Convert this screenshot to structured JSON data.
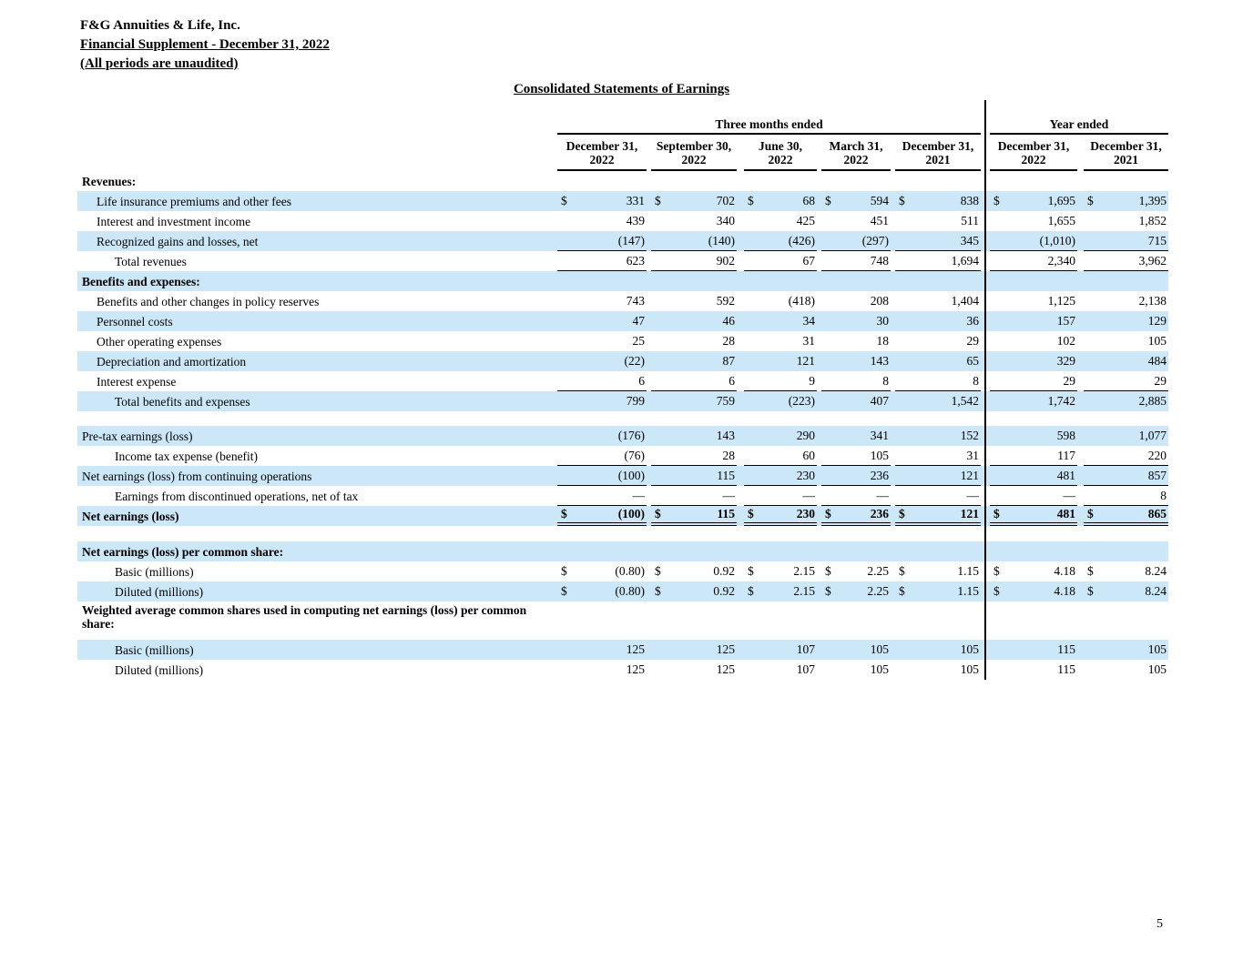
{
  "colors": {
    "row_shade": "#cce8f8",
    "rule": "#000000",
    "text": "#000000"
  },
  "header": {
    "company": "F&G Annuities & Life, Inc.",
    "subtitle": "Financial Supplement - December 31, 2022",
    "note": "(All periods are unaudited)"
  },
  "title": "Consolidated Statements of Earnings",
  "page_number": "5",
  "table": {
    "group_headers": [
      {
        "label": "Three months ended",
        "span": 5
      },
      {
        "label": "Year ended",
        "span": 2
      }
    ],
    "columns": [
      {
        "line1": "December 31,",
        "line2": "2022"
      },
      {
        "line1": "September 30,",
        "line2": "2022"
      },
      {
        "line1": "June 30,",
        "line2": "2022"
      },
      {
        "line1": "March 31,",
        "line2": "2022"
      },
      {
        "line1": "December 31,",
        "line2": "2021"
      },
      {
        "line1": "December 31,",
        "line2": "2022"
      },
      {
        "line1": "December 31,",
        "line2": "2021"
      }
    ],
    "rows": [
      {
        "label": "Revenues:",
        "bold": true,
        "indent": 0,
        "shade": false,
        "values": null
      },
      {
        "label": "Life insurance premiums and other fees",
        "indent": 1,
        "shade": true,
        "dollar": true,
        "values": [
          "331",
          "702",
          "68",
          "594",
          "838",
          "1,695",
          "1,395"
        ]
      },
      {
        "label": "Interest and investment income",
        "indent": 1,
        "shade": false,
        "values": [
          "439",
          "340",
          "425",
          "451",
          "511",
          "1,655",
          "1,852"
        ]
      },
      {
        "label": "Recognized gains and losses, net",
        "indent": 1,
        "shade": true,
        "rule": "single",
        "values": [
          "(147)",
          "(140)",
          "(426)",
          "(297)",
          "345",
          "(1,010)",
          "715"
        ]
      },
      {
        "label": "Total revenues",
        "indent": 2,
        "shade": false,
        "rule": "single",
        "values": [
          "623",
          "902",
          "67",
          "748",
          "1,694",
          "2,340",
          "3,962"
        ]
      },
      {
        "label": "Benefits and expenses:",
        "bold": true,
        "indent": 0,
        "shade": true,
        "values": null
      },
      {
        "label": "Benefits and other changes in policy reserves",
        "indent": 1,
        "shade": false,
        "values": [
          "743",
          "592",
          "(418)",
          "208",
          "1,404",
          "1,125",
          "2,138"
        ]
      },
      {
        "label": "Personnel costs",
        "indent": 1,
        "shade": true,
        "values": [
          "47",
          "46",
          "34",
          "30",
          "36",
          "157",
          "129"
        ]
      },
      {
        "label": "Other operating expenses",
        "indent": 1,
        "shade": false,
        "values": [
          "25",
          "28",
          "31",
          "18",
          "29",
          "102",
          "105"
        ]
      },
      {
        "label": "Depreciation and amortization",
        "indent": 1,
        "shade": true,
        "values": [
          "(22)",
          "87",
          "121",
          "143",
          "65",
          "329",
          "484"
        ]
      },
      {
        "label": "Interest expense",
        "indent": 1,
        "shade": false,
        "rule": "single",
        "values": [
          "6",
          "6",
          "9",
          "8",
          "8",
          "29",
          "29"
        ]
      },
      {
        "label": "Total benefits and expenses",
        "indent": 2,
        "shade": true,
        "values": [
          "799",
          "759",
          "(223)",
          "407",
          "1,542",
          "1,742",
          "2,885"
        ]
      },
      {
        "spacer": true,
        "height": 16
      },
      {
        "label": "Pre-tax earnings (loss)",
        "indent": 0,
        "shade": true,
        "values": [
          "(176)",
          "143",
          "290",
          "341",
          "152",
          "598",
          "1,077"
        ]
      },
      {
        "label": "Income tax expense (benefit)",
        "indent": 2,
        "shade": false,
        "rule": "single",
        "values": [
          "(76)",
          "28",
          "60",
          "105",
          "31",
          "117",
          "220"
        ]
      },
      {
        "label": "Net earnings (loss) from continuing operations",
        "indent": 0,
        "shade": true,
        "rule": "single",
        "values": [
          "(100)",
          "115",
          "230",
          "236",
          "121",
          "481",
          "857"
        ]
      },
      {
        "label": "Earnings from discontinued operations, net of tax",
        "indent": 2,
        "shade": false,
        "rule": "single",
        "values": [
          "—",
          "—",
          "—",
          "—",
          "—",
          "—",
          "8"
        ]
      },
      {
        "label": "Net earnings (loss)",
        "bold": true,
        "indent": 0,
        "shade": true,
        "dollar": true,
        "rule": "double",
        "values": [
          "(100)",
          "115",
          "230",
          "236",
          "121",
          "481",
          "865"
        ]
      },
      {
        "spacer": true,
        "height": 17
      },
      {
        "label": "Net earnings (loss) per common share:",
        "bold": true,
        "indent": 0,
        "shade": true,
        "values": null
      },
      {
        "label": "Basic (millions)",
        "indent": 2,
        "shade": false,
        "dollar": true,
        "values": [
          "(0.80)",
          "0.92",
          "2.15",
          "2.25",
          "1.15",
          "4.18",
          "8.24"
        ]
      },
      {
        "label": "Diluted (millions)",
        "indent": 2,
        "shade": true,
        "dollar": true,
        "values": [
          "(0.80)",
          "0.92",
          "2.15",
          "2.25",
          "1.15",
          "4.18",
          "8.24"
        ]
      },
      {
        "label": "Weighted average common shares used in computing net earnings (loss) per common share:",
        "bold": true,
        "indent": 0,
        "shade": false,
        "values": null,
        "tall": true
      },
      {
        "label": "Basic (millions)",
        "indent": 2,
        "shade": true,
        "values": [
          "125",
          "125",
          "107",
          "105",
          "105",
          "115",
          "105"
        ]
      },
      {
        "label": "Diluted (millions)",
        "indent": 2,
        "shade": false,
        "values": [
          "125",
          "125",
          "107",
          "105",
          "105",
          "115",
          "105"
        ]
      }
    ]
  }
}
